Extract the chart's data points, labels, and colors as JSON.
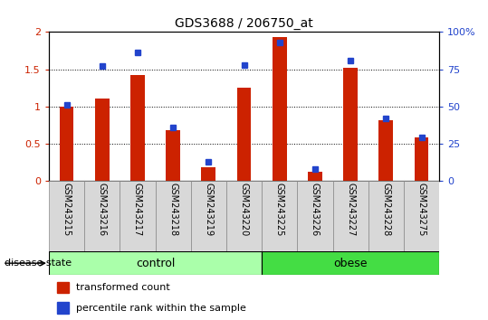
{
  "title": "GDS3688 / 206750_at",
  "samples": [
    "GSM243215",
    "GSM243216",
    "GSM243217",
    "GSM243218",
    "GSM243219",
    "GSM243220",
    "GSM243225",
    "GSM243226",
    "GSM243227",
    "GSM243228",
    "GSM243275"
  ],
  "transformed_count": [
    1.0,
    1.1,
    1.42,
    0.68,
    0.18,
    1.25,
    1.93,
    0.12,
    1.52,
    0.82,
    0.58
  ],
  "percentile_rank": [
    51,
    77,
    86,
    36,
    13,
    78,
    93,
    8,
    81,
    42,
    29
  ],
  "groups": [
    {
      "label": "control",
      "start": 0,
      "end": 5,
      "color": "#aaffaa"
    },
    {
      "label": "obese",
      "start": 6,
      "end": 10,
      "color": "#44dd44"
    }
  ],
  "bar_color_red": "#cc2200",
  "bar_color_blue": "#2244cc",
  "ylim_left": [
    0,
    2
  ],
  "ylim_right": [
    0,
    100
  ],
  "yticks_left": [
    0,
    0.5,
    1.0,
    1.5,
    2.0
  ],
  "yticks_right": [
    0,
    25,
    50,
    75,
    100
  ],
  "ytick_labels_left": [
    "0",
    "0.5",
    "1",
    "1.5",
    "2"
  ],
  "ytick_labels_right": [
    "0",
    "25",
    "50",
    "75",
    "100%"
  ],
  "legend_labels": [
    "transformed count",
    "percentile rank within the sample"
  ],
  "disease_state_label": "disease state",
  "background_color": "#ffffff",
  "plot_bg_color": "#ffffff",
  "bar_width": 0.4
}
